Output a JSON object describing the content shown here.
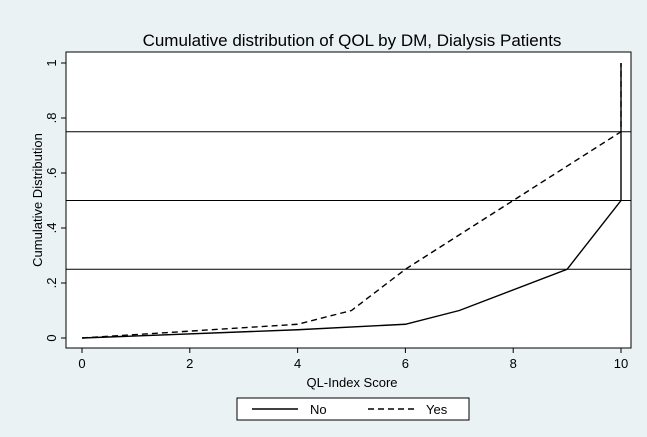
{
  "chart_data": {
    "type": "line",
    "title": "Cumulative distribution of QOL by DM, Dialysis Patients",
    "xlabel": "QL-Index Score",
    "ylabel": "Cumulative Distribution",
    "xlim": [
      0,
      10
    ],
    "ylim": [
      0,
      1
    ],
    "x_ticks": [
      0,
      2,
      4,
      6,
      8,
      10
    ],
    "x_tick_labels": [
      "0",
      "2",
      "4",
      "6",
      "8",
      "10"
    ],
    "y_ticks": [
      0,
      0.2,
      0.4,
      0.6,
      0.8,
      1
    ],
    "y_tick_labels": [
      "0",
      ".2",
      ".4",
      ".6",
      ".8",
      "1"
    ],
    "reference_lines_y": [
      0.25,
      0.5,
      0.75
    ],
    "grid": false,
    "legend_position": "bottom",
    "series": [
      {
        "name": "No",
        "style": "solid",
        "color": "#000000",
        "points": [
          [
            0,
            0
          ],
          [
            4,
            0.03
          ],
          [
            6,
            0.05
          ],
          [
            7,
            0.1
          ],
          [
            9,
            0.25
          ],
          [
            10,
            0.5
          ],
          [
            10,
            1
          ]
        ]
      },
      {
        "name": "Yes",
        "style": "dashed",
        "color": "#000000",
        "points": [
          [
            0,
            0
          ],
          [
            4,
            0.05
          ],
          [
            5,
            0.1
          ],
          [
            6,
            0.25
          ],
          [
            7,
            0.375
          ],
          [
            10,
            0.75
          ],
          [
            10,
            1
          ]
        ]
      }
    ]
  }
}
